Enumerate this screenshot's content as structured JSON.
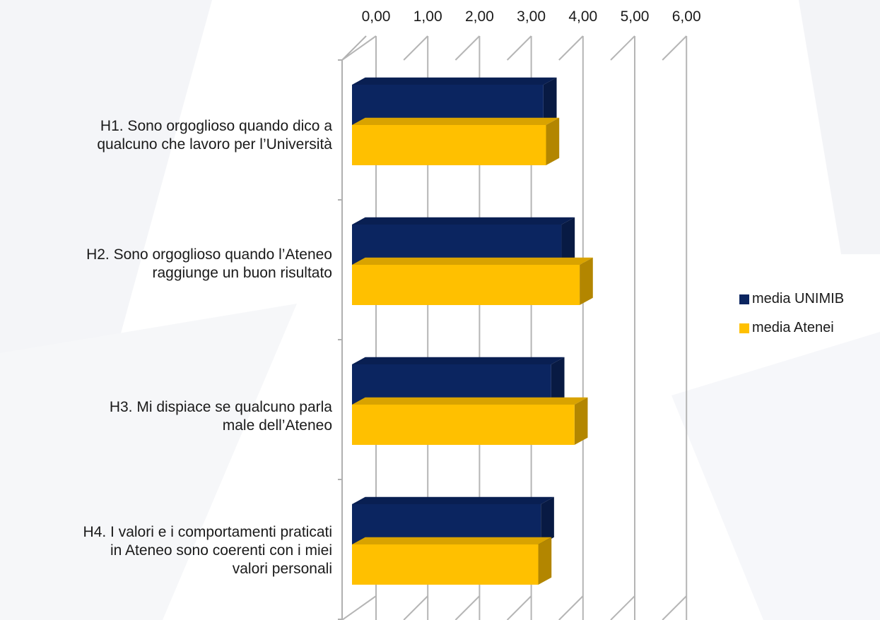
{
  "chart_data": {
    "type": "bar",
    "orientation": "horizontal",
    "three_d": true,
    "categories": [
      "H1. Sono orgoglioso quando dico a qualcuno che lavoro per l’Università",
      "H2. Sono orgoglioso quando l’Ateneo raggiunge un buon risultato",
      "H3. Mi dispiace se qualcuno parla male dell’Ateneo",
      "H4. I valori e i comportamenti praticati in Ateneo sono coerenti con i miei valori personali"
    ],
    "category_lines": [
      [
        "H1. Sono orgoglioso quando dico a",
        "qualcuno che lavoro per l’Università"
      ],
      [
        "H2. Sono orgoglioso quando l’Ateneo",
        "raggiunge un buon risultato"
      ],
      [
        "H3. Mi dispiace se qualcuno parla",
        "male dell’Ateneo"
      ],
      [
        "H4. I valori e i comportamenti praticati",
        "in Ateneo sono coerenti con i miei",
        "valori personali"
      ]
    ],
    "series": [
      {
        "name": "media UNIMIB",
        "color": "#0b2560",
        "values": [
          3.7,
          4.05,
          3.85,
          3.65
        ]
      },
      {
        "name": "media Atenei",
        "color": "#ffc000",
        "values": [
          3.75,
          4.4,
          4.3,
          3.6
        ]
      }
    ],
    "x_ticks": [
      "0,00",
      "1,00",
      "2,00",
      "3,00",
      "4,00",
      "5,00",
      "6,00"
    ],
    "xlim": [
      0,
      6
    ],
    "x_axis_position": "top",
    "grid": true,
    "legend_position": "right"
  }
}
